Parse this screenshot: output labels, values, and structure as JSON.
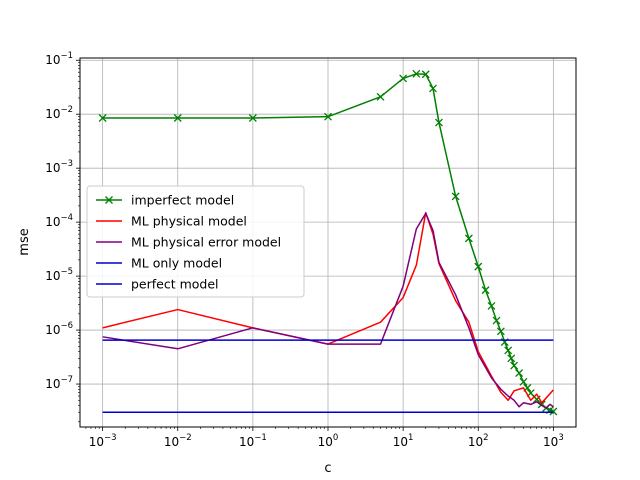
{
  "chart_data": {
    "type": "line",
    "xlabel": "c",
    "ylabel": "mse",
    "x_scale": "log",
    "y_scale": "log",
    "xlim": [
      0.0005,
      2000
    ],
    "ylim": [
      1.6e-08,
      0.11
    ],
    "grid": true,
    "legend_position": "center-left",
    "x_ticks": [
      {
        "value": 0.001,
        "base": "10",
        "exp": "−3"
      },
      {
        "value": 0.01,
        "base": "10",
        "exp": "−2"
      },
      {
        "value": 0.1,
        "base": "10",
        "exp": "−1"
      },
      {
        "value": 1,
        "base": "10",
        "exp": "0"
      },
      {
        "value": 10,
        "base": "10",
        "exp": "1"
      },
      {
        "value": 100,
        "base": "10",
        "exp": "2"
      },
      {
        "value": 1000,
        "base": "10",
        "exp": "3"
      }
    ],
    "y_ticks": [
      {
        "value": 1e-07,
        "base": "10",
        "exp": "−7"
      },
      {
        "value": 1e-06,
        "base": "10",
        "exp": "−6"
      },
      {
        "value": 1e-05,
        "base": "10",
        "exp": "−5"
      },
      {
        "value": 0.0001,
        "base": "10",
        "exp": "−4"
      },
      {
        "value": 0.001,
        "base": "10",
        "exp": "−3"
      },
      {
        "value": 0.01,
        "base": "10",
        "exp": "−2"
      },
      {
        "value": 0.1,
        "base": "10",
        "exp": "−1"
      }
    ],
    "series": [
      {
        "name": "imperfect model",
        "color": "#008000",
        "marker": "x",
        "x": [
          0.001,
          0.01,
          0.1,
          1,
          5,
          10,
          15,
          20,
          25,
          30,
          50,
          75,
          100,
          125,
          150,
          175,
          200,
          225,
          250,
          275,
          300,
          350,
          400,
          450,
          500,
          600,
          700,
          800,
          900,
          1000
        ],
        "y": [
          0.0085,
          0.0085,
          0.0085,
          0.009,
          0.021,
          0.046,
          0.056,
          0.055,
          0.03,
          0.007,
          0.0003,
          5e-05,
          1.5e-05,
          5.5e-06,
          2.8e-06,
          1.5e-06,
          9.5e-07,
          6e-07,
          4.2e-07,
          3e-07,
          2.2e-07,
          1.6e-07,
          1.1e-07,
          8.5e-08,
          6.8e-08,
          5.2e-08,
          4.2e-08,
          3.6e-08,
          3.3e-08,
          3.1e-08
        ]
      },
      {
        "name": "ML physical model",
        "color": "#ff0000",
        "marker": "none",
        "x": [
          0.001,
          0.01,
          0.1,
          1,
          5,
          10,
          15,
          20,
          25,
          30,
          50,
          75,
          100,
          150,
          200,
          250,
          300,
          400,
          500,
          600,
          700,
          800,
          1000
        ],
        "y": [
          1.1e-06,
          2.4e-06,
          1.1e-06,
          5.5e-07,
          1.4e-06,
          4e-06,
          1.6e-05,
          0.00015,
          6e-05,
          1.7e-05,
          3.5e-06,
          1.4e-06,
          4e-07,
          1.4e-07,
          7e-08,
          5e-08,
          7.5e-08,
          8.5e-08,
          5e-08,
          6.5e-08,
          4.5e-08,
          5.5e-08,
          7.8e-08
        ]
      },
      {
        "name": "ML physical error model",
        "color": "#800080",
        "marker": "none",
        "x": [
          0.001,
          0.01,
          0.1,
          1,
          5,
          10,
          15,
          20,
          25,
          30,
          50,
          75,
          100,
          150,
          200,
          250,
          300,
          350,
          400,
          500,
          600,
          700,
          800,
          900,
          1000
        ],
        "y": [
          7.5e-07,
          4.5e-07,
          1.1e-06,
          5.5e-07,
          5.5e-07,
          6.5e-06,
          7.5e-05,
          0.000145,
          7e-05,
          1.8e-05,
          4.5e-06,
          1.1e-06,
          3.5e-07,
          1.3e-07,
          8e-08,
          6e-08,
          5e-08,
          3.8e-08,
          4.5e-08,
          4.2e-08,
          4.7e-08,
          4e-08,
          3.6e-08,
          4.2e-08,
          3.8e-08
        ]
      },
      {
        "name": "ML only model",
        "color": "#0000cc",
        "marker": "none",
        "x": [
          0.001,
          1000
        ],
        "y": [
          6.5e-07,
          6.5e-07
        ]
      },
      {
        "name": "perfect model",
        "color": "#0000cc",
        "marker": "none",
        "x": [
          0.001,
          1000
        ],
        "y": [
          3e-08,
          3e-08
        ]
      }
    ]
  }
}
